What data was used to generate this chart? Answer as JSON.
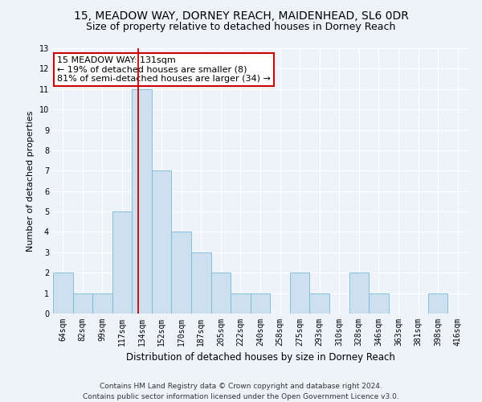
{
  "title1": "15, MEADOW WAY, DORNEY REACH, MAIDENHEAD, SL6 0DR",
  "title2": "Size of property relative to detached houses in Dorney Reach",
  "xlabel": "Distribution of detached houses by size in Dorney Reach",
  "ylabel": "Number of detached properties",
  "categories": [
    "64sqm",
    "82sqm",
    "99sqm",
    "117sqm",
    "134sqm",
    "152sqm",
    "170sqm",
    "187sqm",
    "205sqm",
    "222sqm",
    "240sqm",
    "258sqm",
    "275sqm",
    "293sqm",
    "310sqm",
    "328sqm",
    "346sqm",
    "363sqm",
    "381sqm",
    "398sqm",
    "416sqm"
  ],
  "values": [
    2,
    1,
    1,
    5,
    11,
    7,
    4,
    3,
    2,
    1,
    1,
    0,
    2,
    1,
    0,
    2,
    1,
    0,
    0,
    1,
    0
  ],
  "bar_color": "#cce0f0",
  "bar_edgecolor": "#7ab8d8",
  "bar_linewidth": 0.6,
  "annotation_text": "15 MEADOW WAY: 131sqm\n← 19% of detached houses are smaller (8)\n81% of semi-detached houses are larger (34) →",
  "annotation_box_facecolor": "#ffffff",
  "annotation_box_edgecolor": "#cc0000",
  "ylim": [
    0,
    13
  ],
  "yticks": [
    0,
    1,
    2,
    3,
    4,
    5,
    6,
    7,
    8,
    9,
    10,
    11,
    12,
    13
  ],
  "background_color": "#eef3fa",
  "grid_color": "#ffffff",
  "footer1": "Contains HM Land Registry data © Crown copyright and database right 2024.",
  "footer2": "Contains public sector information licensed under the Open Government Licence v3.0.",
  "title1_fontsize": 10,
  "title2_fontsize": 9,
  "xlabel_fontsize": 8.5,
  "ylabel_fontsize": 8,
  "tick_fontsize": 7,
  "footer_fontsize": 6.5,
  "annotation_fontsize": 8,
  "subject_sqm": 131,
  "bin_edges_sqm": [
    64,
    82,
    99,
    117,
    134,
    152,
    170,
    187,
    205,
    222,
    240,
    258,
    275,
    293,
    310,
    328,
    346,
    363,
    381,
    398,
    416
  ]
}
